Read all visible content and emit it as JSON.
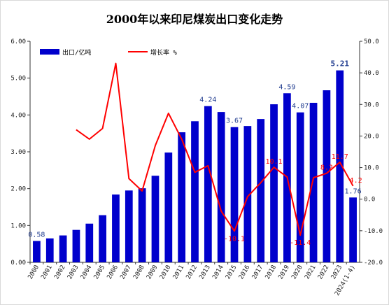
{
  "chart_data": {
    "type": "bar",
    "title": "2000年以来印尼煤炭出口变化走势",
    "categories": [
      "2000",
      "2001",
      "2002",
      "2003",
      "2004",
      "2005",
      "2006",
      "2007",
      "2008",
      "2009",
      "2010",
      "2011",
      "2012",
      "2013",
      "2014",
      "2015",
      "2016",
      "2017",
      "2018",
      "2019",
      "2020",
      "2021",
      "2022",
      "2023",
      "2024(1-4)"
    ],
    "series": [
      {
        "name": "出口/亿吨",
        "type": "bar",
        "axis": "left",
        "color": "#0000cc",
        "values": [
          0.58,
          0.65,
          0.73,
          0.88,
          1.05,
          1.28,
          1.84,
          1.95,
          2.01,
          2.35,
          2.98,
          3.53,
          3.83,
          4.24,
          4.08,
          3.67,
          3.7,
          3.89,
          4.29,
          4.59,
          4.07,
          4.33,
          4.67,
          5.21,
          1.76
        ]
      },
      {
        "name": "增长率 %",
        "type": "line",
        "axis": "right",
        "color": "#ff0000",
        "values": [
          null,
          null,
          null,
          22.0,
          19.0,
          22.4,
          43.0,
          6.5,
          2.6,
          17.0,
          27.2,
          19.0,
          8.5,
          10.6,
          -3.8,
          -10.1,
          0.8,
          5.2,
          10.1,
          7.0,
          -11.4,
          6.8,
          8.2,
          11.7,
          4.2
        ]
      }
    ],
    "bar_labels": [
      {
        "index": 0,
        "text": "0.58"
      },
      {
        "index": 13,
        "text": "4.24"
      },
      {
        "index": 15,
        "text": "3.67"
      },
      {
        "index": 19,
        "text": "4.59"
      },
      {
        "index": 20,
        "text": "4.07"
      },
      {
        "index": 23,
        "text": "5.21",
        "bold": true
      },
      {
        "index": 24,
        "text": "1.76"
      }
    ],
    "growth_labels": [
      {
        "index": 15,
        "text": "-10.1"
      },
      {
        "index": 18,
        "text": "10.1"
      },
      {
        "index": 20,
        "text": "-11.4"
      },
      {
        "index": 22,
        "text": "8.2"
      },
      {
        "index": 23,
        "text": "11.7"
      },
      {
        "index": 24,
        "text": "4.2"
      }
    ],
    "y_left": {
      "min": 0,
      "max": 6,
      "step": 1,
      "ticks": [
        "0.00",
        "1.00",
        "2.00",
        "3.00",
        "4.00",
        "5.00",
        "6.00"
      ]
    },
    "y_right": {
      "min": -20,
      "max": 50,
      "step": 10,
      "ticks": [
        "-20.0",
        "-10.0",
        "0.0",
        "10.0",
        "20.0",
        "30.0",
        "40.0",
        "50.0"
      ]
    },
    "grid": false,
    "legend_position": "top-left"
  }
}
